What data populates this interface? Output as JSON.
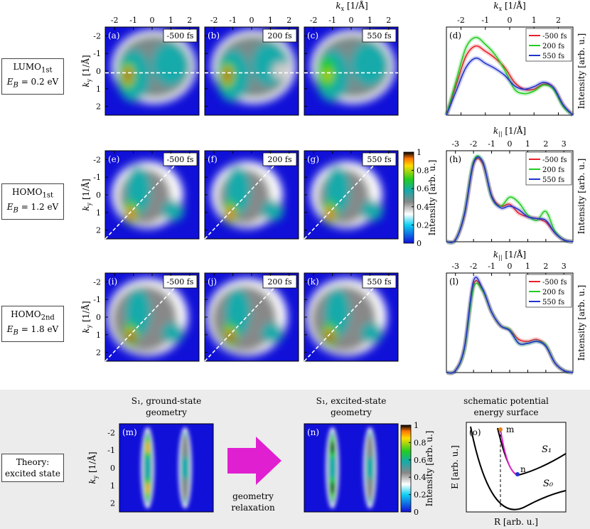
{
  "rows": [
    {
      "label_html": "LUMO<sub>1st</sub>",
      "energy_html": "<i>E<sub>B</sub></i> = 0.2 eV"
    },
    {
      "label_html": "HOMO<sub>1st</sub>",
      "energy_html": "<i>E<sub>B</sub></i> = 1.2 eV"
    },
    {
      "label_html": "HOMO<sub>2nd</sub>",
      "energy_html": "<i>E<sub>B</sub></i> = 1.8 eV"
    }
  ],
  "theory_label": [
    "Theory:",
    "excited state"
  ],
  "axes": {
    "kx_label": "k_x [1/Å]",
    "ky_label": "k_y [1/Å]",
    "kpar_label": "k_|| [1/Å]",
    "intensity_label": "Intensity [arb. u.]",
    "map_x_ticks": [
      "-2",
      "-1",
      "0",
      "1",
      "2"
    ],
    "map_y_ticks": [
      "-2",
      "-1",
      "0",
      "1",
      "2"
    ],
    "line_d_ticks": [
      "-2",
      "-1",
      "0",
      "1",
      "2"
    ],
    "line_hl_ticks": [
      "-3",
      "-2",
      "-1",
      "0",
      "1",
      "2",
      "3"
    ],
    "colorbar_ticks": [
      "1",
      "0.8",
      "0.6",
      "0.4",
      "0.2",
      "0"
    ]
  },
  "maps": [
    {
      "panel": "(a)",
      "time": "-500 fs"
    },
    {
      "panel": "(b)",
      "time": "200 fs"
    },
    {
      "panel": "(c)",
      "time": "550 fs"
    },
    {
      "panel": "(e)",
      "time": "-500 fs"
    },
    {
      "panel": "(f)",
      "time": "200 fs"
    },
    {
      "panel": "(g)",
      "time": "550 fs"
    },
    {
      "panel": "(i)",
      "time": "-500 fs"
    },
    {
      "panel": "(j)",
      "time": "200 fs"
    },
    {
      "panel": "(k)",
      "time": "550 fs"
    }
  ],
  "legend": [
    {
      "name": "-500 fs",
      "color": "#e8202a"
    },
    {
      "name": "200 fs",
      "color": "#22cc22"
    },
    {
      "name": "550 fs",
      "color": "#2233cc"
    }
  ],
  "theory": {
    "m_title": [
      "S₁, ground-state",
      "geometry"
    ],
    "n_title": [
      "S₁, excited-state",
      "geometry"
    ],
    "o_title": [
      "schematic potential",
      "energy surface"
    ],
    "arrow_text": [
      "geometry",
      "relaxation"
    ],
    "o_panel": "(o)",
    "m_panel": "(m)",
    "n_panel": "(n)",
    "o_xlabel": "R [arb. u.]",
    "o_ylabel": "E [arb. u.]",
    "curve_s1": "S₁",
    "curve_s0": "S₀",
    "point_m": "m",
    "point_n": "n",
    "accent_magenta": "#e020d0"
  },
  "chart_data": [
    {
      "type": "heatmap",
      "panel": "(a)",
      "title": "-500 fs",
      "xlabel": "k_x [1/Å]",
      "ylabel": "k_y [1/Å]",
      "xlim": [
        -2.5,
        2.5
      ],
      "ylim": [
        -2.5,
        2.5
      ],
      "colorbar": "Intensity [arb. u.]",
      "clim": [
        0,
        1
      ]
    },
    {
      "type": "line",
      "panel": "(d)",
      "xlabel": "k_x [1/Å]",
      "ylabel": "Intensity [arb. u.]",
      "xlim": [
        -2.6,
        2.6
      ],
      "x": [
        -2.6,
        -2.2,
        -1.8,
        -1.4,
        -1.0,
        -0.6,
        -0.2,
        0.2,
        0.6,
        1.0,
        1.4,
        1.8,
        2.2,
        2.6
      ],
      "series": [
        {
          "name": "-500 fs",
          "values": [
            0.0,
            0.35,
            0.68,
            0.8,
            0.74,
            0.66,
            0.55,
            0.38,
            0.3,
            0.3,
            0.36,
            0.32,
            0.12,
            0.0
          ]
        },
        {
          "name": "200 fs",
          "values": [
            0.0,
            0.4,
            0.78,
            0.9,
            0.82,
            0.7,
            0.52,
            0.3,
            0.25,
            0.28,
            0.35,
            0.3,
            0.1,
            0.0
          ]
        },
        {
          "name": "550 fs",
          "values": [
            0.0,
            0.28,
            0.55,
            0.66,
            0.6,
            0.54,
            0.46,
            0.34,
            0.3,
            0.33,
            0.38,
            0.32,
            0.12,
            0.0
          ]
        }
      ]
    },
    {
      "type": "line",
      "panel": "(h)",
      "xlabel": "k_|| [1/Å]",
      "ylabel": "Intensity [arb. u.]",
      "xlim": [
        -3.5,
        3.5
      ],
      "x": [
        -3.5,
        -3.0,
        -2.5,
        -2.0,
        -1.5,
        -1.0,
        -0.5,
        0.0,
        0.5,
        1.0,
        1.5,
        2.0,
        2.5,
        3.0,
        3.5
      ],
      "series": [
        {
          "name": "-500 fs",
          "values": [
            0.0,
            0.02,
            0.3,
            0.87,
            0.88,
            0.52,
            0.4,
            0.42,
            0.32,
            0.28,
            0.26,
            0.22,
            0.1,
            0.02,
            0.0
          ]
        },
        {
          "name": "200 fs",
          "values": [
            0.0,
            0.02,
            0.32,
            0.9,
            0.9,
            0.5,
            0.4,
            0.5,
            0.44,
            0.3,
            0.24,
            0.34,
            0.12,
            0.02,
            0.0
          ]
        },
        {
          "name": "550 fs",
          "values": [
            0.0,
            0.02,
            0.31,
            0.88,
            0.9,
            0.51,
            0.38,
            0.4,
            0.36,
            0.28,
            0.26,
            0.24,
            0.1,
            0.02,
            0.0
          ]
        }
      ]
    },
    {
      "type": "line",
      "panel": "(l)",
      "xlabel": "k_|| [1/Å]",
      "ylabel": "Intensity [arb. u.]",
      "xlim": [
        -3.5,
        3.5
      ],
      "x": [
        -3.5,
        -3.0,
        -2.5,
        -2.0,
        -1.5,
        -1.0,
        -0.5,
        0.0,
        0.5,
        1.0,
        1.5,
        2.0,
        2.5,
        3.0,
        3.5
      ],
      "series": [
        {
          "name": "-500 fs",
          "values": [
            0.0,
            0.02,
            0.25,
            0.9,
            0.85,
            0.62,
            0.48,
            0.44,
            0.34,
            0.32,
            0.34,
            0.28,
            0.1,
            0.02,
            0.0
          ]
        },
        {
          "name": "200 fs",
          "values": [
            0.0,
            0.02,
            0.24,
            0.87,
            0.84,
            0.62,
            0.48,
            0.44,
            0.3,
            0.3,
            0.32,
            0.28,
            0.1,
            0.02,
            0.0
          ]
        },
        {
          "name": "550 fs",
          "values": [
            0.0,
            0.02,
            0.26,
            0.94,
            0.86,
            0.62,
            0.48,
            0.43,
            0.3,
            0.3,
            0.32,
            0.27,
            0.1,
            0.02,
            0.0
          ]
        }
      ]
    }
  ]
}
